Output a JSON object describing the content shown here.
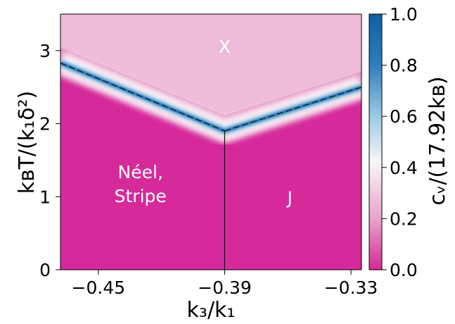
{
  "chart_data": {
    "type": "heatmap",
    "title": "",
    "xlabel": "k₃/k₁",
    "ylabel": "kʙT/(k₁δ²)",
    "xlim": [
      -0.468,
      -0.325
    ],
    "ylim": [
      0,
      3.5
    ],
    "x_ticks": [
      -0.45,
      -0.39,
      -0.33
    ],
    "x_tick_labels": [
      "−0.45",
      "−0.39",
      "−0.33"
    ],
    "y_ticks": [
      0,
      1,
      2,
      3
    ],
    "y_tick_labels": [
      "0",
      "1",
      "2",
      "3"
    ],
    "colorbar": {
      "label": "cᵥ/(17.92kʙ)",
      "range": [
        0.0,
        1.0
      ],
      "ticks": [
        0.0,
        0.2,
        0.4,
        0.6,
        0.8,
        1.0
      ],
      "tick_labels": [
        "0.0",
        "0.2",
        "0.4",
        "0.6",
        "0.8",
        "1.0"
      ],
      "colors": [
        "#d62a9a",
        "#e9a2cc",
        "#f7f7f7",
        "#9dc9e3",
        "#2f7fbd",
        "#0f5fa4"
      ]
    },
    "phase_boundaries": [
      {
        "name": "neel-stripe-boundary",
        "points": [
          [
            -0.468,
            2.83
          ],
          [
            -0.39,
            1.9
          ]
        ]
      },
      {
        "name": "j-boundary",
        "points": [
          [
            -0.39,
            1.9
          ],
          [
            -0.325,
            2.5
          ]
        ]
      },
      {
        "name": "vertical-boundary",
        "points": [
          [
            -0.39,
            0.0
          ],
          [
            -0.39,
            1.9
          ]
        ]
      }
    ],
    "region_labels": [
      {
        "text": "X",
        "x": -0.39,
        "y": 2.97
      },
      {
        "text": "Néel,\nStripe",
        "x": -0.43,
        "y": 1.1
      },
      {
        "text": "J",
        "x": -0.359,
        "y": 0.9
      }
    ]
  }
}
